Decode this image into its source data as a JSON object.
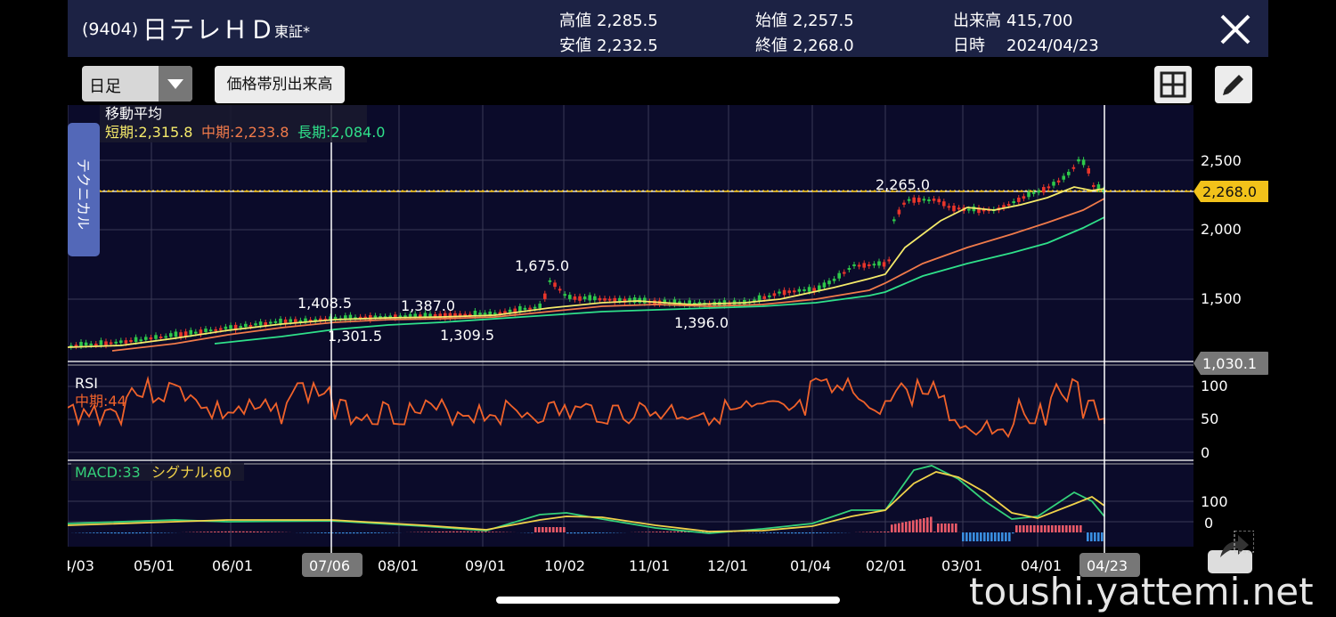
{
  "header": {
    "code": "(9404)",
    "name": "日テレＨＤ",
    "market": "東証*",
    "high_label": "高値",
    "high_value": "2,285.5",
    "low_label": "安値",
    "low_value": "2,232.5",
    "open_label": "始値",
    "open_value": "2,257.5",
    "close_label": "終値",
    "close_value": "2,268.0",
    "volume_label": "出来高",
    "volume_value": "415,700",
    "date_label": "日時",
    "date_value": "2024/04/23"
  },
  "toolbar": {
    "period_selected": "日足",
    "volume_by_price_label": "価格帯別出来高"
  },
  "sidebar": {
    "technical_tab_label": "テクニカル"
  },
  "main_chart": {
    "legend_title": "移動平均",
    "ma_short": "短期:2,315.8",
    "ma_mid": "中期:2,233.8",
    "ma_long": "長期:2,084.0",
    "price_ticks": [
      "2,500",
      "2,000",
      "1,500"
    ],
    "current_price_tag": "2,268.0",
    "crosshair_price_tag": "1,030.1",
    "annotations": [
      "2,265.0",
      "1,675.0",
      "1,408.5",
      "1,387.0",
      "1,301.5",
      "1,309.5",
      "1,396.0"
    ]
  },
  "rsi": {
    "title": "RSI",
    "label": "中期:44",
    "ticks": [
      "100",
      "50",
      "0"
    ]
  },
  "macd": {
    "macd_label": "MACD:33",
    "signal_label": "シグナル:60",
    "ticks": [
      "100",
      "0"
    ]
  },
  "x_axis": {
    "labels": [
      "4/03",
      "05/01",
      "06/01",
      "07/06",
      "08/01",
      "09/01",
      "10/02",
      "11/01",
      "12/01",
      "01/04",
      "02/01",
      "03/01",
      "04/01",
      "04/23"
    ]
  },
  "colors": {
    "ma_short": "#f5ea6a",
    "ma_mid": "#f07a4a",
    "ma_long": "#2fe08a",
    "up": "#e8352a",
    "down": "#2ec84a",
    "rsi": "#f0622a",
    "macd": "#34d17a",
    "signal": "#f0d24a",
    "tag": "#f2c21a",
    "header_bg": "#1c2244"
  },
  "icons": {
    "close": "close-icon",
    "grid": "grid-icon",
    "draw": "pencil-icon",
    "share": "share-icon"
  },
  "watermark": "toushi.yattemi.net"
}
